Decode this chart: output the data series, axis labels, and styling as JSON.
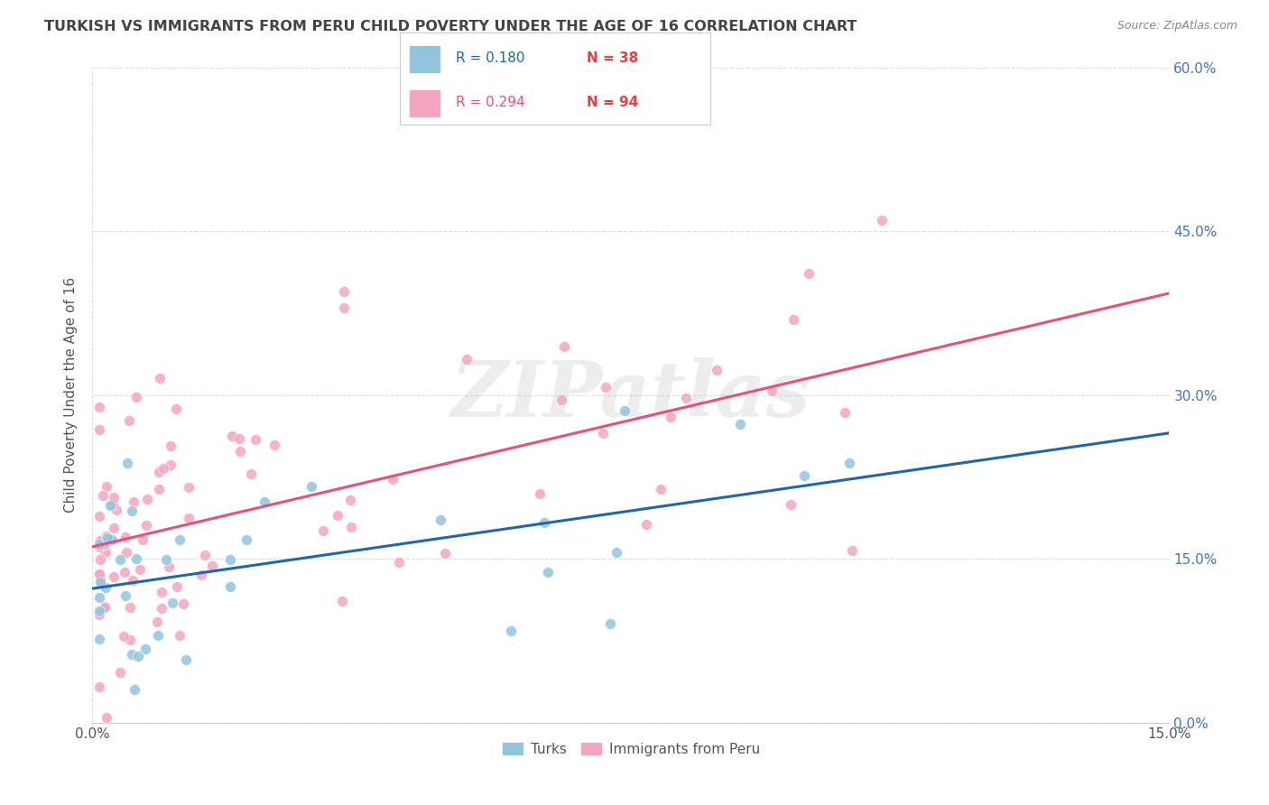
{
  "title": "TURKISH VS IMMIGRANTS FROM PERU CHILD POVERTY UNDER THE AGE OF 16 CORRELATION CHART",
  "source": "Source: ZipAtlas.com",
  "ylabel": "Child Poverty Under the Age of 16",
  "xlim": [
    0.0,
    0.15
  ],
  "ylim": [
    0.0,
    0.6
  ],
  "ytick_positions": [
    0.0,
    0.15,
    0.3,
    0.45,
    0.6
  ],
  "ytick_labels": [
    "0.0%",
    "15.0%",
    "30.0%",
    "45.0%",
    "60.0%"
  ],
  "xtick_positions": [
    0.0,
    0.15
  ],
  "xtick_labels": [
    "0.0%",
    "15.0%"
  ],
  "background_color": "#ffffff",
  "grid_color": "#dddddd",
  "watermark_text": "ZIPatlas",
  "watermark_color": "#cccccc",
  "title_color": "#444444",
  "source_color": "#888888",
  "ylabel_color": "#555555",
  "tick_color": "#555555",
  "right_tick_color": "#4472c4",
  "turks_dot_color": "#92c5de",
  "peru_dot_color": "#f4a6c0",
  "turks_line_color": "#2166ac",
  "peru_line_color": "#e8507a",
  "turks_R": 0.18,
  "turks_N": 38,
  "peru_R": 0.294,
  "peru_N": 94,
  "legend_R_turks_color": "#2166ac",
  "legend_N_turks_color": "#e84040",
  "legend_R_peru_color": "#e8507a",
  "legend_N_peru_color": "#e84040",
  "bottom_legend_label_color": "#555555"
}
